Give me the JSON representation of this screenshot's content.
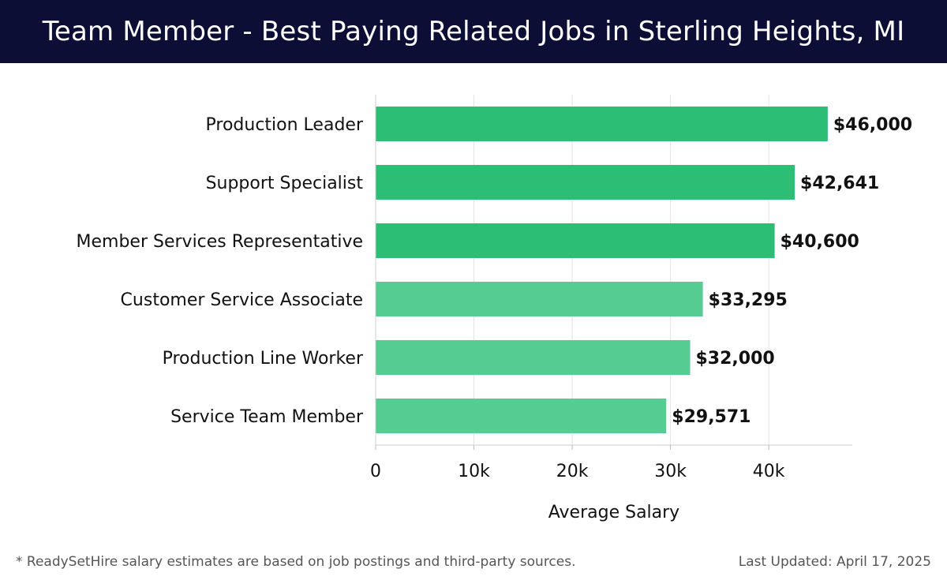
{
  "header": {
    "title": "Team Member - Best Paying Related Jobs in Sterling Heights, MI"
  },
  "chart_data": {
    "type": "bar",
    "orientation": "horizontal",
    "categories": [
      "Production Leader",
      "Support Specialist",
      "Member Services Representative",
      "Customer Service Associate",
      "Production Line Worker",
      "Service Team Member"
    ],
    "values": [
      46000,
      42641,
      40600,
      33295,
      32000,
      29571
    ],
    "value_labels": [
      "$46,000",
      "$42,641",
      "$40,600",
      "$33,295",
      "$32,000",
      "$29,571"
    ],
    "xlabel": "Average Salary",
    "ylabel": "",
    "xlim": [
      0,
      48500
    ],
    "xticks": [
      0,
      10000,
      20000,
      30000,
      40000
    ],
    "xtick_labels": [
      "0",
      "10k",
      "20k",
      "30k",
      "40k"
    ],
    "grid": true,
    "colors": {
      "top_bars": "#2dbe76",
      "other_bars": "#55cc91"
    }
  },
  "footer": {
    "note": "* ReadySetHire salary estimates are based on job postings and third-party sources.",
    "updated": "Last Updated: April 17, 2025"
  }
}
